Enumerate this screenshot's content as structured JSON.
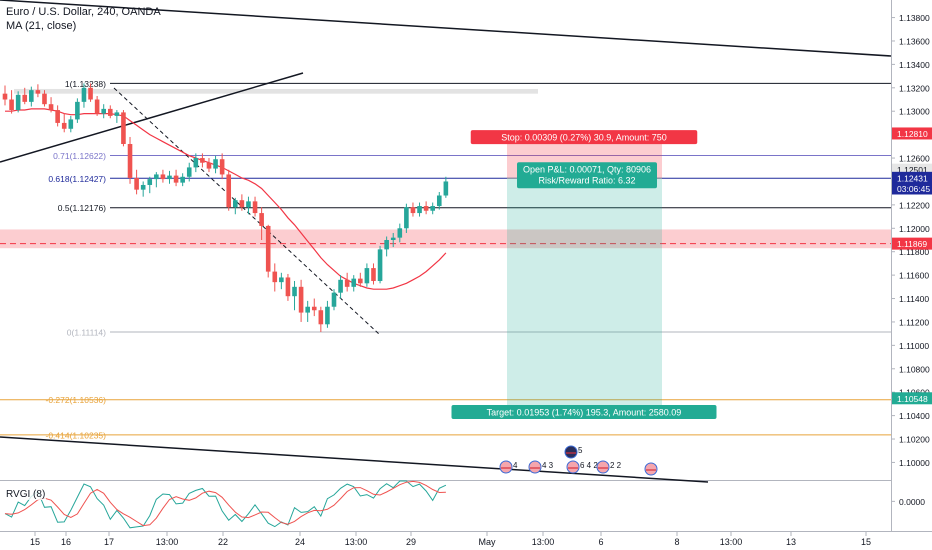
{
  "header": {
    "symbol_line": "Euro / U.S. Dollar, 240, OANDA",
    "ma_line": "MA (21, close)"
  },
  "chart_data": {
    "type": "candlestick",
    "instrument": "Euro / U.S. Dollar",
    "timeframe": "240",
    "source": "OANDA",
    "ylim": [
      1.0985,
      1.1395
    ],
    "y_ticks": [
      "1.13800",
      "1.13600",
      "1.13400",
      "1.13200",
      "1.13000",
      "1.12800",
      "1.12600",
      "1.12400",
      "1.12200",
      "1.12000",
      "1.11800",
      "1.11600",
      "1.11400",
      "1.11200",
      "1.11000",
      "1.10800",
      "1.10600",
      "1.10400",
      "1.10200",
      "1.10000"
    ],
    "x_ticks": [
      "15",
      "16",
      "17",
      "13:00",
      "22",
      "24",
      "13:00",
      "29",
      "May",
      "13:00",
      "6",
      "8",
      "13:00",
      "13",
      "15"
    ],
    "candles": [
      {
        "o": 1.1315,
        "h": 1.1322,
        "l": 1.1305,
        "c": 1.131
      },
      {
        "o": 1.131,
        "h": 1.1318,
        "l": 1.1298,
        "c": 1.1301
      },
      {
        "o": 1.1301,
        "h": 1.1317,
        "l": 1.1299,
        "c": 1.1314
      },
      {
        "o": 1.1314,
        "h": 1.132,
        "l": 1.1306,
        "c": 1.1308
      },
      {
        "o": 1.1308,
        "h": 1.1321,
        "l": 1.1304,
        "c": 1.1318
      },
      {
        "o": 1.1318,
        "h": 1.1323,
        "l": 1.1312,
        "c": 1.1315
      },
      {
        "o": 1.1315,
        "h": 1.1318,
        "l": 1.1304,
        "c": 1.1306
      },
      {
        "o": 1.1306,
        "h": 1.1312,
        "l": 1.1299,
        "c": 1.1301
      },
      {
        "o": 1.1301,
        "h": 1.1305,
        "l": 1.1287,
        "c": 1.129
      },
      {
        "o": 1.129,
        "h": 1.1298,
        "l": 1.1282,
        "c": 1.1285
      },
      {
        "o": 1.1285,
        "h": 1.1296,
        "l": 1.1282,
        "c": 1.1293
      },
      {
        "o": 1.1293,
        "h": 1.1311,
        "l": 1.129,
        "c": 1.1308
      },
      {
        "o": 1.1308,
        "h": 1.13238,
        "l": 1.1303,
        "c": 1.132
      },
      {
        "o": 1.132,
        "h": 1.13238,
        "l": 1.1308,
        "c": 1.131
      },
      {
        "o": 1.131,
        "h": 1.1313,
        "l": 1.1296,
        "c": 1.1298
      },
      {
        "o": 1.1298,
        "h": 1.1306,
        "l": 1.1294,
        "c": 1.1302
      },
      {
        "o": 1.1302,
        "h": 1.1305,
        "l": 1.1294,
        "c": 1.1296
      },
      {
        "o": 1.1296,
        "h": 1.1301,
        "l": 1.129,
        "c": 1.1299
      },
      {
        "o": 1.1299,
        "h": 1.1301,
        "l": 1.127,
        "c": 1.1272
      },
      {
        "o": 1.1272,
        "h": 1.1278,
        "l": 1.1238,
        "c": 1.1243
      },
      {
        "o": 1.1243,
        "h": 1.125,
        "l": 1.1229,
        "c": 1.1233
      },
      {
        "o": 1.1233,
        "h": 1.124,
        "l": 1.1227,
        "c": 1.1237
      },
      {
        "o": 1.1237,
        "h": 1.1244,
        "l": 1.123,
        "c": 1.1242
      },
      {
        "o": 1.1242,
        "h": 1.1248,
        "l": 1.1235,
        "c": 1.1246
      },
      {
        "o": 1.1246,
        "h": 1.125,
        "l": 1.1239,
        "c": 1.1242
      },
      {
        "o": 1.1242,
        "h": 1.1249,
        "l": 1.1238,
        "c": 1.1245
      },
      {
        "o": 1.1245,
        "h": 1.125,
        "l": 1.1236,
        "c": 1.1239
      },
      {
        "o": 1.1239,
        "h": 1.1247,
        "l": 1.1236,
        "c": 1.1244
      },
      {
        "o": 1.1244,
        "h": 1.1256,
        "l": 1.124,
        "c": 1.1252
      },
      {
        "o": 1.1252,
        "h": 1.1264,
        "l": 1.1248,
        "c": 1.126
      },
      {
        "o": 1.126,
        "h": 1.1264,
        "l": 1.1252,
        "c": 1.1256
      },
      {
        "o": 1.1256,
        "h": 1.126,
        "l": 1.1248,
        "c": 1.1251
      },
      {
        "o": 1.1251,
        "h": 1.1262,
        "l": 1.1247,
        "c": 1.1259
      },
      {
        "o": 1.1259,
        "h": 1.1264,
        "l": 1.1242,
        "c": 1.1246
      },
      {
        "o": 1.1246,
        "h": 1.125,
        "l": 1.1215,
        "c": 1.1218
      },
      {
        "o": 1.1218,
        "h": 1.1226,
        "l": 1.1212,
        "c": 1.1224
      },
      {
        "o": 1.1224,
        "h": 1.1229,
        "l": 1.1215,
        "c": 1.1218
      },
      {
        "o": 1.1218,
        "h": 1.1227,
        "l": 1.1212,
        "c": 1.1223
      },
      {
        "o": 1.1223,
        "h": 1.1227,
        "l": 1.121,
        "c": 1.1213
      },
      {
        "o": 1.1213,
        "h": 1.1218,
        "l": 1.119,
        "c": 1.1202
      },
      {
        "o": 1.1202,
        "h": 1.1203,
        "l": 1.1158,
        "c": 1.1163
      },
      {
        "o": 1.1163,
        "h": 1.117,
        "l": 1.1146,
        "c": 1.1154
      },
      {
        "o": 1.1154,
        "h": 1.1162,
        "l": 1.1148,
        "c": 1.1158
      },
      {
        "o": 1.1158,
        "h": 1.1161,
        "l": 1.1138,
        "c": 1.1142
      },
      {
        "o": 1.1142,
        "h": 1.1155,
        "l": 1.113,
        "c": 1.115
      },
      {
        "o": 1.115,
        "h": 1.1156,
        "l": 1.112,
        "c": 1.1128
      },
      {
        "o": 1.1128,
        "h": 1.1138,
        "l": 1.112,
        "c": 1.1133
      },
      {
        "o": 1.1133,
        "h": 1.114,
        "l": 1.1125,
        "c": 1.113
      },
      {
        "o": 1.113,
        "h": 1.1133,
        "l": 1.11114,
        "c": 1.1118
      },
      {
        "o": 1.1118,
        "h": 1.1138,
        "l": 1.1115,
        "c": 1.1133
      },
      {
        "o": 1.1133,
        "h": 1.1148,
        "l": 1.113,
        "c": 1.1145
      },
      {
        "o": 1.1145,
        "h": 1.116,
        "l": 1.114,
        "c": 1.1156
      },
      {
        "o": 1.1156,
        "h": 1.1162,
        "l": 1.1146,
        "c": 1.115
      },
      {
        "o": 1.115,
        "h": 1.116,
        "l": 1.1146,
        "c": 1.1157
      },
      {
        "o": 1.1157,
        "h": 1.1162,
        "l": 1.115,
        "c": 1.1153
      },
      {
        "o": 1.1153,
        "h": 1.117,
        "l": 1.115,
        "c": 1.1166
      },
      {
        "o": 1.1166,
        "h": 1.117,
        "l": 1.1152,
        "c": 1.1155
      },
      {
        "o": 1.1155,
        "h": 1.1185,
        "l": 1.1153,
        "c": 1.1182
      },
      {
        "o": 1.1182,
        "h": 1.1193,
        "l": 1.1176,
        "c": 1.119
      },
      {
        "o": 1.119,
        "h": 1.1196,
        "l": 1.1184,
        "c": 1.1192
      },
      {
        "o": 1.1192,
        "h": 1.1204,
        "l": 1.1188,
        "c": 1.12
      },
      {
        "o": 1.12,
        "h": 1.1221,
        "l": 1.1196,
        "c": 1.1218
      },
      {
        "o": 1.1218,
        "h": 1.1222,
        "l": 1.121,
        "c": 1.1213
      },
      {
        "o": 1.1213,
        "h": 1.1222,
        "l": 1.121,
        "c": 1.1219
      },
      {
        "o": 1.1219,
        "h": 1.1223,
        "l": 1.1212,
        "c": 1.1215
      },
      {
        "o": 1.1215,
        "h": 1.1222,
        "l": 1.1212,
        "c": 1.1219
      },
      {
        "o": 1.1219,
        "h": 1.1231,
        "l": 1.1216,
        "c": 1.1228
      },
      {
        "o": 1.1228,
        "h": 1.1244,
        "l": 1.1226,
        "c": 1.124
      }
    ],
    "ma_21": [
      1.13,
      1.13,
      1.1301,
      1.1301,
      1.1302,
      1.1302,
      1.1302,
      1.1301,
      1.13,
      1.1298,
      1.1297,
      1.1297,
      1.1298,
      1.1298,
      1.1298,
      1.1298,
      1.1298,
      1.1297,
      1.1296,
      1.1292,
      1.1288,
      1.1284,
      1.128,
      1.1277,
      1.1274,
      1.1271,
      1.1268,
      1.1265,
      1.1262,
      1.126,
      1.1258,
      1.1256,
      1.1254,
      1.1252,
      1.1249,
      1.1246,
      1.1243,
      1.1241,
      1.1238,
      1.1234,
      1.1228,
      1.1222,
      1.1216,
      1.1209,
      1.1203,
      1.1196,
      1.1189,
      1.1182,
      1.1175,
      1.1169,
      1.1164,
      1.1159,
      1.1156,
      1.1153,
      1.1151,
      1.1149,
      1.1148,
      1.1148,
      1.1148,
      1.1149,
      1.1151,
      1.1153,
      1.1156,
      1.1159,
      1.1163,
      1.1168,
      1.1173,
      1.1179
    ],
    "fibonacci": [
      {
        "label": "1(1.13238)",
        "value": 1.13238,
        "color": "#131722"
      },
      {
        "label": "0.71(1.12622)",
        "value": 1.12622,
        "color": "#7a74c9"
      },
      {
        "label": "0.618(1.12427)",
        "value": 1.12427,
        "color": "#1f2a9b"
      },
      {
        "label": "0.5(1.12176)",
        "value": 1.12176,
        "color": "#131722"
      },
      {
        "label": "0(1.11114)",
        "value": 1.11114,
        "color": "#b2b5be"
      },
      {
        "label": "-0.272(1.10536)",
        "value": 1.10536,
        "color": "#e8a33a"
      },
      {
        "label": "-0.414(1.10235)",
        "value": 1.10235,
        "color": "#e8a33a"
      }
    ],
    "zone": {
      "from": 1.1183,
      "to": 1.1199,
      "dashed": 1.11869
    },
    "position": {
      "entry": 1.12427,
      "stop": 1.12736,
      "target": 1.10474,
      "stop_label": "Stop: 0.00309 (0.27%) 30.9, Amount: 750",
      "open_label_1": "Open P&L: 0.00071, Qty: 80906",
      "open_label_2": "Risk/Reward Ratio: 6.32",
      "target_label": "Target: 0.01953 (1.74%) 195.3, Amount: 2580.09"
    },
    "price_tags": [
      {
        "text": "1.12810",
        "value": 1.1281,
        "bg": "#f23645",
        "fg": "#ffffff"
      },
      {
        "text": "1.12501",
        "value": 1.12501,
        "bg": "#e6e6e6",
        "fg": "#131722"
      },
      {
        "text": "1.12431",
        "value": 1.12431,
        "bg": "#1f2a9b",
        "fg": "#ffffff"
      },
      {
        "text": "03:06:45",
        "value": 1.1234,
        "bg": "#1f2a9b",
        "fg": "#ffffff"
      },
      {
        "text": "1.11869",
        "value": 1.11869,
        "bg": "#f23645",
        "fg": "#ffffff"
      },
      {
        "text": "1.10548",
        "value": 1.10548,
        "bg": "#22ab94",
        "fg": "#ffffff"
      }
    ],
    "events": [
      {
        "count": "4"
      },
      {
        "count": "4 3"
      },
      {
        "count": "5"
      },
      {
        "count": "6 4 2"
      },
      {
        "count": "2 2"
      },
      {
        "count": ""
      }
    ],
    "indicator": {
      "name": "RVGI (8)",
      "ticks": [
        "0.0000"
      ],
      "ylim": [
        -0.32,
        0.22
      ]
    },
    "colors": {
      "up": "#26a69a",
      "down": "#ef5350",
      "ma": "#f23645",
      "rvgi_fast": "#26a69a",
      "rvgi_slow": "#ef5350"
    }
  }
}
